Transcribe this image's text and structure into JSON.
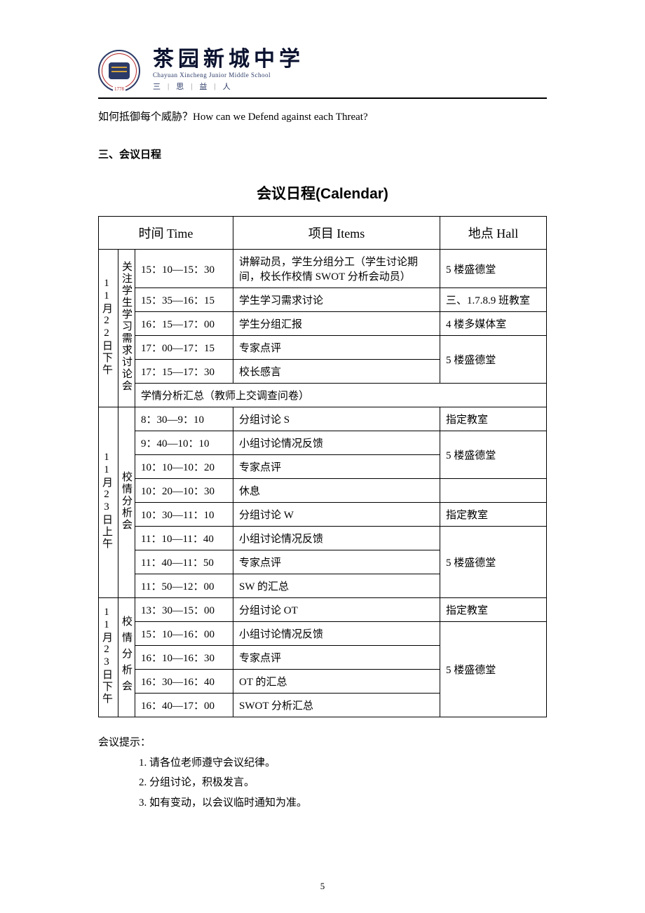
{
  "header": {
    "school_cn": "茶园新城中学",
    "school_en": "Chayuan Xincheng Junior Middle School",
    "motto": [
      "三",
      "思",
      "益",
      "人"
    ],
    "logo_year": "1778"
  },
  "intro_line": "如何抵御每个威胁？How can we Defend against each Threat?",
  "section_heading": "三、会议日程",
  "calendar_title": "会议日程(Calendar)",
  "table": {
    "headers": {
      "time": "时间 Time",
      "items": "项目 Items",
      "hall": "地点 Hall"
    },
    "blocks": [
      {
        "date": "11月22日下午",
        "session": "关注学生学习需求讨论会",
        "rows": [
          {
            "time": "15：10—15：30",
            "item": "讲解动员，学生分组分工（学生讨论期间，校长作校情 SWOT 分析会动员）",
            "hall": "5 楼盛德堂"
          },
          {
            "time": "15：35—16：15",
            "item": "学生学习需求讨论",
            "hall": "三、1.7.8.9 班教室"
          },
          {
            "time": "16：15—17：00",
            "item": "学生分组汇报",
            "hall": "4 楼多媒体室"
          },
          {
            "time": "17：00—17：15",
            "item": "专家点评",
            "hall": "5 楼盛德堂"
          },
          {
            "time": "17：15—17：30",
            "item": "校长感言",
            "hall": ""
          },
          {
            "time": "",
            "item": "学情分析汇总（教师上交调查问卷）",
            "hall": "",
            "fullspan": true
          }
        ]
      },
      {
        "date": "11月23日上午",
        "session": "校情分析会",
        "rows": [
          {
            "time": "8：30—9：10",
            "item": "分组讨论 S",
            "hall": "指定教室"
          },
          {
            "time": "9：40—10：10",
            "item": "小组讨论情况反馈",
            "hall": "5 楼盛德堂"
          },
          {
            "time": "10：10—10：20",
            "item": "专家点评",
            "hall": ""
          },
          {
            "time": "10：20—10：30",
            "item": "休息",
            "hall": ""
          },
          {
            "time": "10：30—11：10",
            "item": "分组讨论 W",
            "hall": "指定教室"
          },
          {
            "time": "11：10—11：40",
            "item": "小组讨论情况反馈",
            "hall": "5 楼盛德堂"
          },
          {
            "time": "11：40—11：50",
            "item": "专家点评",
            "hall": ""
          },
          {
            "time": "11：50—12：00",
            "item": "SW 的汇总",
            "hall": ""
          }
        ]
      },
      {
        "date": "11月23日下午",
        "session": "校情分析会",
        "rows": [
          {
            "time": "13：30—15：00",
            "item": "分组讨论 OT",
            "hall": "指定教室"
          },
          {
            "time": "15：10—16：00",
            "item": "小组讨论情况反馈",
            "hall": "5 楼盛德堂"
          },
          {
            "time": "16：10—16：30",
            "item": "专家点评",
            "hall": ""
          },
          {
            "time": "16：30—16：40",
            "item": "OT 的汇总",
            "hall": ""
          },
          {
            "time": "16：40—17：00",
            "item": "SWOT 分析汇总",
            "hall": ""
          }
        ]
      }
    ]
  },
  "notes": {
    "heading": "会议提示：",
    "items": [
      "1. 请各位老师遵守会议纪律。",
      "2. 分组讨论，积极发言。",
      "3. 如有变动，以会议临时通知为准。"
    ]
  },
  "page_number": "5",
  "style": {
    "body_font_size": 15,
    "title_font_size": 21,
    "header_font_size": 18,
    "border_color": "#000000",
    "background": "#ffffff"
  }
}
